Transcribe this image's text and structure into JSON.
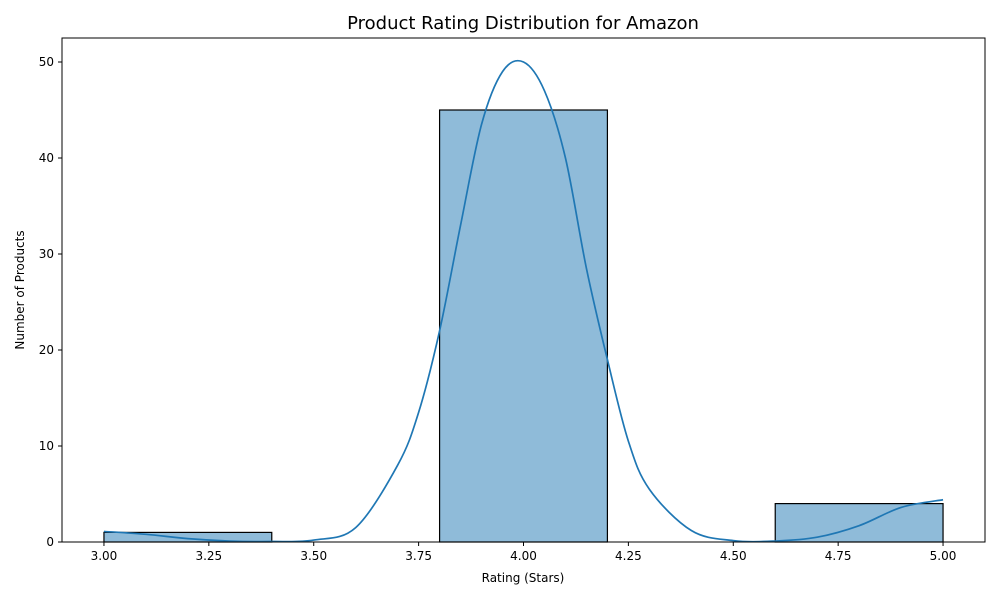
{
  "chart_data": {
    "type": "bar",
    "title": "Product Rating Distribution for Amazon",
    "xlabel": "Rating (Stars)",
    "ylabel": "Number of Products",
    "xlim": [
      2.9,
      5.1
    ],
    "ylim": [
      0,
      52.5
    ],
    "x_ticks": [
      "3.00",
      "3.25",
      "3.50",
      "3.75",
      "4.00",
      "4.25",
      "4.50",
      "4.75",
      "5.00"
    ],
    "y_ticks": [
      "0",
      "10",
      "20",
      "30",
      "40",
      "50"
    ],
    "bins": [
      {
        "start": 3.0,
        "end": 3.4,
        "value": 1
      },
      {
        "start": 3.4,
        "end": 3.8,
        "value": 0
      },
      {
        "start": 3.8,
        "end": 4.2,
        "value": 45
      },
      {
        "start": 4.2,
        "end": 4.6,
        "value": 0
      },
      {
        "start": 4.6,
        "end": 5.0,
        "value": 4
      }
    ],
    "kde": {
      "x": [
        3.0,
        3.1,
        3.2,
        3.3,
        3.4,
        3.5,
        3.6,
        3.7,
        3.75,
        3.8,
        3.85,
        3.9,
        3.95,
        4.0,
        4.05,
        4.1,
        4.15,
        4.2,
        4.25,
        4.3,
        4.4,
        4.5,
        4.6,
        4.7,
        4.8,
        4.9,
        5.0
      ],
      "y": [
        1.1,
        0.8,
        0.35,
        0.1,
        0.05,
        0.2,
        1.5,
        8.0,
        13.5,
        22.0,
        33.0,
        43.5,
        49.0,
        50.0,
        47.0,
        40.0,
        28.5,
        19.0,
        10.5,
        5.5,
        1.2,
        0.15,
        0.1,
        0.5,
        1.7,
        3.6,
        4.4
      ]
    },
    "colors": {
      "bar_fill": "#1f77b4",
      "bar_edge": "#000000",
      "line": "#1f77b4"
    },
    "grid": false,
    "legend": false
  }
}
